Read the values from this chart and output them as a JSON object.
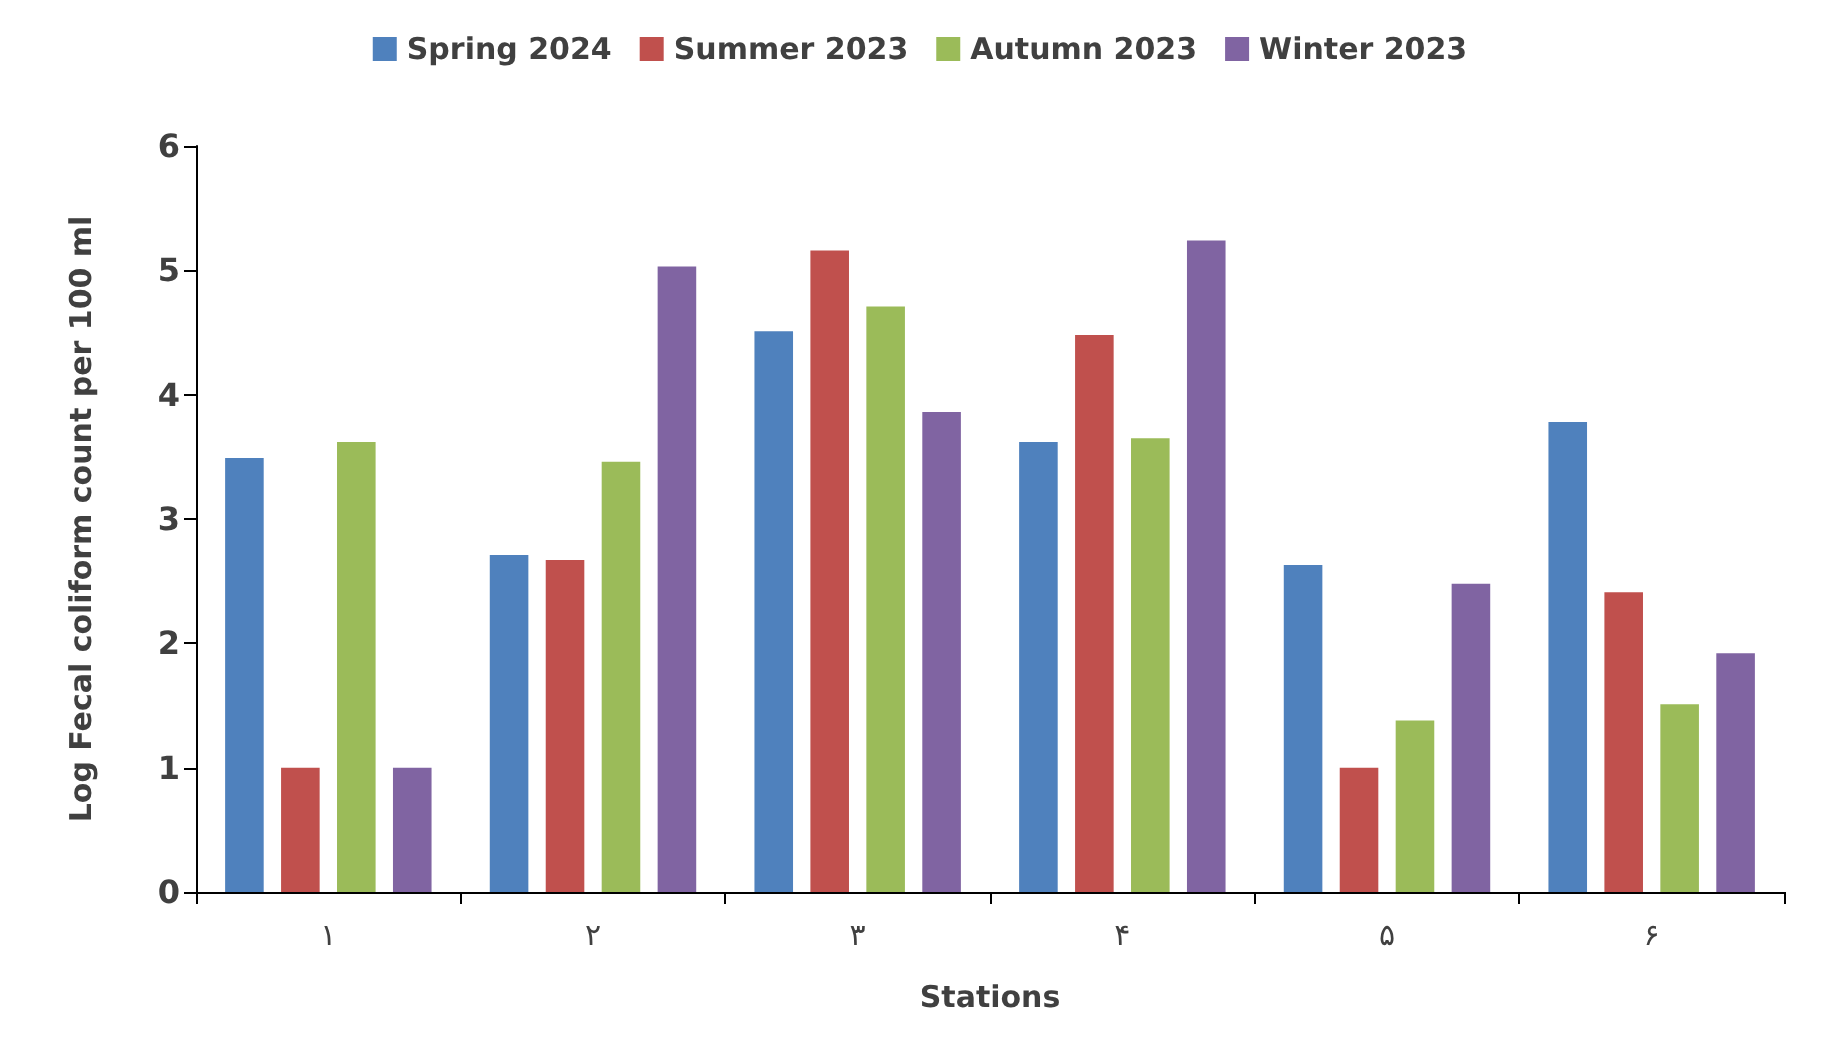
{
  "chart_data": {
    "type": "bar",
    "xlabel": "Stations",
    "ylabel": "Log Fecal coliform count per 100 ml",
    "categories": [
      "۱",
      "۲",
      "۳",
      "۴",
      "۵",
      "۶"
    ],
    "series": [
      {
        "name": "Spring 2024",
        "color": "#4f81bd",
        "values": [
          3.49,
          2.71,
          4.51,
          3.62,
          2.63,
          3.78
        ]
      },
      {
        "name": "Summer 2023",
        "color": "#c0504d",
        "values": [
          1.0,
          2.67,
          5.16,
          4.48,
          1.0,
          2.41
        ]
      },
      {
        "name": "Autumn 2023",
        "color": "#9bbb59",
        "values": [
          3.62,
          3.46,
          4.71,
          3.65,
          1.38,
          1.51
        ]
      },
      {
        "name": "Winter 2023",
        "color": "#8064a2",
        "values": [
          1.0,
          5.03,
          3.86,
          5.24,
          2.48,
          1.92
        ]
      }
    ],
    "ylim": [
      0,
      6
    ],
    "yticks": [
      0,
      1,
      2,
      3,
      4,
      5,
      6
    ],
    "grid": false,
    "legend": "top"
  }
}
